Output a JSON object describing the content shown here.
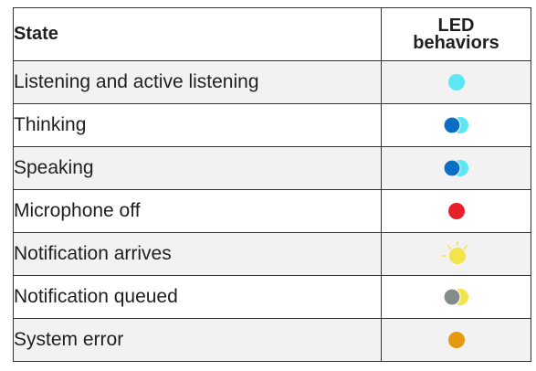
{
  "table": {
    "headers": {
      "state": "State",
      "led_line1": "LED",
      "led_line2": "behaviors"
    },
    "rows": [
      {
        "state": "Listening and active listening",
        "led": "solid-cyan-icon"
      },
      {
        "state": "Thinking",
        "led": "blue-cyan-pair-icon"
      },
      {
        "state": "Speaking",
        "led": "blue-cyan-pair-icon"
      },
      {
        "state": "Microphone off",
        "led": "solid-red-icon"
      },
      {
        "state": "Notification arrives",
        "led": "yellow-pulse-icon"
      },
      {
        "state": "Notification queued",
        "led": "gray-yellow-pair-icon"
      },
      {
        "state": "System error",
        "led": "solid-orange-icon"
      }
    ]
  },
  "colors": {
    "cyan": "#5ce7f2",
    "blue": "#0a6fc4",
    "red": "#e8202a",
    "yellow": "#f2e44a",
    "gray": "#848c8a",
    "orange": "#e39a0f",
    "shaded_row": "#f2f2f2",
    "border": "#333333"
  }
}
